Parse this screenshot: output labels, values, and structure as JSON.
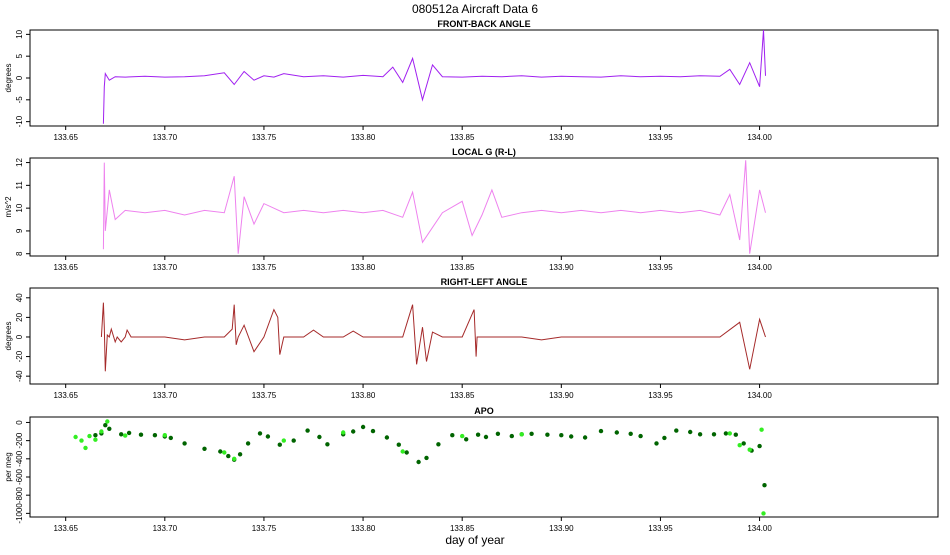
{
  "title": "080512a   Aircraft Data 6",
  "xlabel": "day of year",
  "x_ticks": [
    133.65,
    133.7,
    133.75,
    133.8,
    133.85,
    133.9,
    133.95,
    134.0
  ],
  "x_tick_labels": [
    "133.65",
    "133.70",
    "133.75",
    "133.80",
    "133.85",
    "133.90",
    "133.95",
    "134.00"
  ],
  "xlim": [
    133.632,
    134.09
  ],
  "chart_data": [
    {
      "type": "line",
      "title": "FRONT-BACK ANGLE",
      "ylabel": "degrees",
      "ylim": [
        -11,
        11
      ],
      "y_ticks": [
        10,
        5,
        0,
        -5,
        -10
      ],
      "y_tick_labels": [
        "10",
        "5",
        "0",
        "-5",
        "-10"
      ],
      "color": "#a020f0",
      "series": [
        {
          "name": "front-back angle",
          "x": [
            133.669,
            133.6695,
            133.67,
            133.672,
            133.675,
            133.68,
            133.69,
            133.7,
            133.71,
            133.72,
            133.73,
            133.735,
            133.74,
            133.745,
            133.75,
            133.755,
            133.76,
            133.77,
            133.78,
            133.79,
            133.8,
            133.81,
            133.815,
            133.82,
            133.825,
            133.83,
            133.835,
            133.84,
            133.85,
            133.86,
            133.87,
            133.88,
            133.89,
            133.9,
            133.91,
            133.92,
            133.93,
            133.94,
            133.95,
            133.96,
            133.97,
            133.98,
            133.985,
            133.99,
            133.995,
            134.0,
            134.002,
            134.003
          ],
          "y": [
            -10.5,
            -2,
            1,
            -0.5,
            0.3,
            0.2,
            0.4,
            0.2,
            0.3,
            0.5,
            1.2,
            -1.5,
            1.5,
            -0.5,
            0.5,
            0.2,
            1.0,
            0.3,
            0.5,
            0.2,
            0.6,
            0.3,
            2.5,
            -1.0,
            4.5,
            -5.0,
            3.0,
            0.3,
            0.2,
            0.4,
            0.3,
            0.5,
            0.2,
            0.4,
            0.3,
            0.2,
            0.5,
            0.3,
            0.4,
            0.3,
            0.5,
            0.4,
            2.0,
            -1.5,
            3.5,
            -2.0,
            11.0,
            0.5
          ]
        }
      ]
    },
    {
      "type": "line",
      "title": "LOCAL G (R-L)",
      "ylabel": "m/s^2",
      "ylim": [
        7.9,
        12.2
      ],
      "y_ticks": [
        12,
        11,
        10,
        9,
        8
      ],
      "y_tick_labels": [
        "12",
        "11",
        "10",
        "9",
        "8"
      ],
      "color": "#ee82ee",
      "series": [
        {
          "name": "local g",
          "x": [
            133.669,
            133.6695,
            133.67,
            133.672,
            133.675,
            133.68,
            133.69,
            133.7,
            133.71,
            133.72,
            133.73,
            133.735,
            133.737,
            133.74,
            133.745,
            133.75,
            133.76,
            133.77,
            133.78,
            133.79,
            133.8,
            133.81,
            133.82,
            133.825,
            133.83,
            133.84,
            133.85,
            133.855,
            133.86,
            133.865,
            133.87,
            133.88,
            133.89,
            133.9,
            133.91,
            133.92,
            133.93,
            133.94,
            133.95,
            133.96,
            133.97,
            133.98,
            133.985,
            133.99,
            133.993,
            133.995,
            134.0,
            134.003
          ],
          "y": [
            8.2,
            12.0,
            9.0,
            10.8,
            9.5,
            9.9,
            9.8,
            9.9,
            9.7,
            9.9,
            9.8,
            11.4,
            8.0,
            10.5,
            9.3,
            10.2,
            9.8,
            9.9,
            9.8,
            9.9,
            9.8,
            9.9,
            9.6,
            10.7,
            8.5,
            9.8,
            10.3,
            8.8,
            9.7,
            10.8,
            9.6,
            9.8,
            9.9,
            9.8,
            9.9,
            9.8,
            9.9,
            9.8,
            9.9,
            9.8,
            9.9,
            9.7,
            10.6,
            8.6,
            12.1,
            8.0,
            10.8,
            9.8
          ]
        }
      ]
    },
    {
      "type": "line",
      "title": "RIGHT-LEFT ANGLE",
      "ylabel": "degrees",
      "ylim": [
        -48,
        50
      ],
      "y_ticks": [
        40,
        20,
        0,
        -20,
        -40
      ],
      "y_tick_labels": [
        "40",
        "20",
        "0",
        "-20",
        "-40"
      ],
      "color": "#a52a2a",
      "series": [
        {
          "name": "right-left angle",
          "x": [
            133.668,
            133.669,
            133.6695,
            133.67,
            133.671,
            133.672,
            133.673,
            133.675,
            133.676,
            133.678,
            133.68,
            133.681,
            133.683,
            133.69,
            133.7,
            133.71,
            133.72,
            133.73,
            133.734,
            133.735,
            133.736,
            133.737,
            133.74,
            133.745,
            133.75,
            133.755,
            133.757,
            133.758,
            133.76,
            133.77,
            133.775,
            133.78,
            133.79,
            133.795,
            133.8,
            133.81,
            133.82,
            133.825,
            133.827,
            133.83,
            133.832,
            133.835,
            133.84,
            133.85,
            133.856,
            133.857,
            133.8575,
            133.86,
            133.87,
            133.88,
            133.89,
            133.9,
            133.91,
            133.92,
            133.93,
            133.94,
            133.95,
            133.96,
            133.97,
            133.98,
            133.99,
            133.995,
            134.0,
            134.003
          ],
          "y": [
            0,
            35,
            10,
            -35,
            2,
            0,
            8,
            -5,
            0,
            -5,
            0,
            7,
            0,
            0,
            0,
            -3,
            0,
            0,
            8,
            33,
            -8,
            0,
            12,
            -15,
            0,
            28,
            20,
            -18,
            0,
            0,
            7,
            0,
            0,
            6,
            0,
            0,
            0,
            33,
            -28,
            10,
            -25,
            5,
            0,
            0,
            28,
            -20,
            0,
            0,
            0,
            0,
            -3,
            0,
            0,
            0,
            0,
            0,
            0,
            0,
            0,
            0,
            15,
            -33,
            18,
            0
          ]
        }
      ]
    },
    {
      "type": "scatter",
      "title": "APO",
      "ylabel": "per meg",
      "ylim": [
        -1040,
        60
      ],
      "y_ticks": [
        0,
        -200,
        -400,
        -600,
        -800,
        -1000
      ],
      "y_tick_labels": [
        "0",
        "-200",
        "-400",
        "-600",
        "-800",
        "-1000"
      ],
      "series": [
        {
          "name": "APO dark",
          "color": "#006400",
          "x": [
            133.665,
            133.668,
            133.67,
            133.672,
            133.678,
            133.682,
            133.688,
            133.695,
            133.7,
            133.703,
            133.71,
            133.72,
            133.728,
            133.732,
            133.735,
            133.738,
            133.742,
            133.748,
            133.752,
            133.758,
            133.765,
            133.772,
            133.778,
            133.782,
            133.79,
            133.795,
            133.8,
            133.805,
            133.812,
            133.818,
            133.822,
            133.828,
            133.832,
            133.838,
            133.845,
            133.852,
            133.858,
            133.862,
            133.868,
            133.875,
            133.88,
            133.885,
            133.893,
            133.9,
            133.905,
            133.912,
            133.92,
            133.928,
            133.935,
            133.94,
            133.948,
            133.952,
            133.958,
            133.965,
            133.97,
            133.977,
            133.983,
            133.988,
            133.992,
            133.996,
            134.0,
            134.0025
          ],
          "y": [
            -140,
            -120,
            -30,
            -70,
            -130,
            -115,
            -135,
            -140,
            -155,
            -170,
            -230,
            -290,
            -320,
            -370,
            -410,
            -350,
            -230,
            -120,
            -155,
            -245,
            -200,
            -90,
            -160,
            -240,
            -130,
            -100,
            -50,
            -95,
            -165,
            -245,
            -330,
            -435,
            -390,
            -240,
            -140,
            -185,
            -135,
            -160,
            -125,
            -150,
            -130,
            -125,
            -135,
            -140,
            -155,
            -165,
            -95,
            -110,
            -125,
            -150,
            -230,
            -170,
            -90,
            -105,
            -130,
            -130,
            -120,
            -135,
            -230,
            -310,
            -260,
            -690
          ]
        },
        {
          "name": "APO light",
          "color": "#33ee22",
          "x": [
            133.655,
            133.658,
            133.66,
            133.662,
            133.665,
            133.668,
            133.671,
            133.68,
            133.7,
            133.73,
            133.735,
            133.76,
            133.79,
            133.82,
            133.85,
            133.88,
            133.985,
            133.99,
            133.995,
            134.001,
            134.002
          ],
          "y": [
            -160,
            -200,
            -280,
            -150,
            -190,
            -100,
            10,
            -145,
            -140,
            -330,
            -400,
            -200,
            -110,
            -320,
            -150,
            -130,
            -120,
            -250,
            -300,
            -80,
            -1000
          ]
        }
      ]
    }
  ]
}
